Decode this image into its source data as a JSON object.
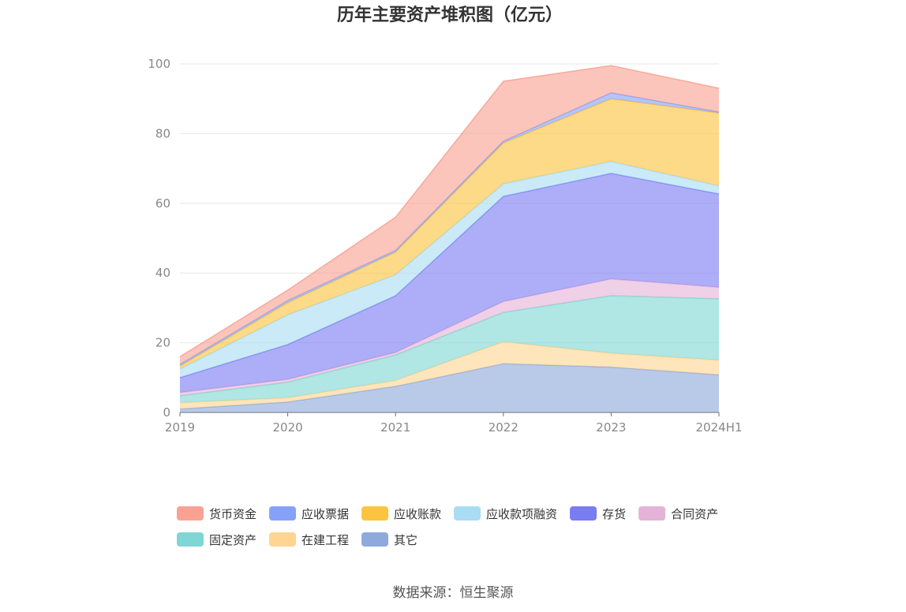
{
  "chart_data": {
    "type": "area",
    "stacked": true,
    "title": "历年主要资产堆积图（亿元）",
    "categories": [
      "2019",
      "2020",
      "2021",
      "2022",
      "2023",
      "2024H1"
    ],
    "ylim": [
      0,
      100
    ],
    "yticks": [
      0,
      20,
      40,
      60,
      80,
      100
    ],
    "grid": true,
    "legend_position": "bottom",
    "series": [
      {
        "name": "其它",
        "color": "#8eaadc",
        "values": [
          1.0,
          3.0,
          7.5,
          14.0,
          13.0,
          10.8
        ]
      },
      {
        "name": "在建工程",
        "color": "#ffd591",
        "values": [
          1.8,
          1.2,
          1.7,
          6.3,
          4.0,
          4.2
        ]
      },
      {
        "name": "固定资产",
        "color": "#7fd6d4",
        "values": [
          2.0,
          4.5,
          7.3,
          8.4,
          16.5,
          17.6
        ]
      },
      {
        "name": "合同资产",
        "color": "#e5b3d8",
        "values": [
          0.9,
          0.8,
          0.7,
          3.1,
          4.8,
          3.3
        ]
      },
      {
        "name": "存货",
        "color": "#7a7cf2",
        "values": [
          4.3,
          10.0,
          16.3,
          30.2,
          30.3,
          26.8
        ]
      },
      {
        "name": "应收款项融资",
        "color": "#a9ddf4",
        "values": [
          2.5,
          8.5,
          6.0,
          3.6,
          3.4,
          2.3
        ]
      },
      {
        "name": "应收账款",
        "color": "#fcc43f",
        "values": [
          0.8,
          3.5,
          6.5,
          11.7,
          18.0,
          20.9
        ]
      },
      {
        "name": "应收票据",
        "color": "#86a2f8",
        "values": [
          0.5,
          0.6,
          0.5,
          0.5,
          1.7,
          0.3
        ]
      },
      {
        "name": "货币资金",
        "color": "#f9a293",
        "values": [
          2.2,
          3.0,
          9.5,
          17.2,
          7.8,
          6.8
        ]
      }
    ]
  },
  "legend_order": [
    "货币资金",
    "应收票据",
    "应收账款",
    "应收款项融资",
    "存货",
    "合同资产",
    "固定资产",
    "在建工程",
    "其它"
  ],
  "source": "数据来源：恒生聚源"
}
